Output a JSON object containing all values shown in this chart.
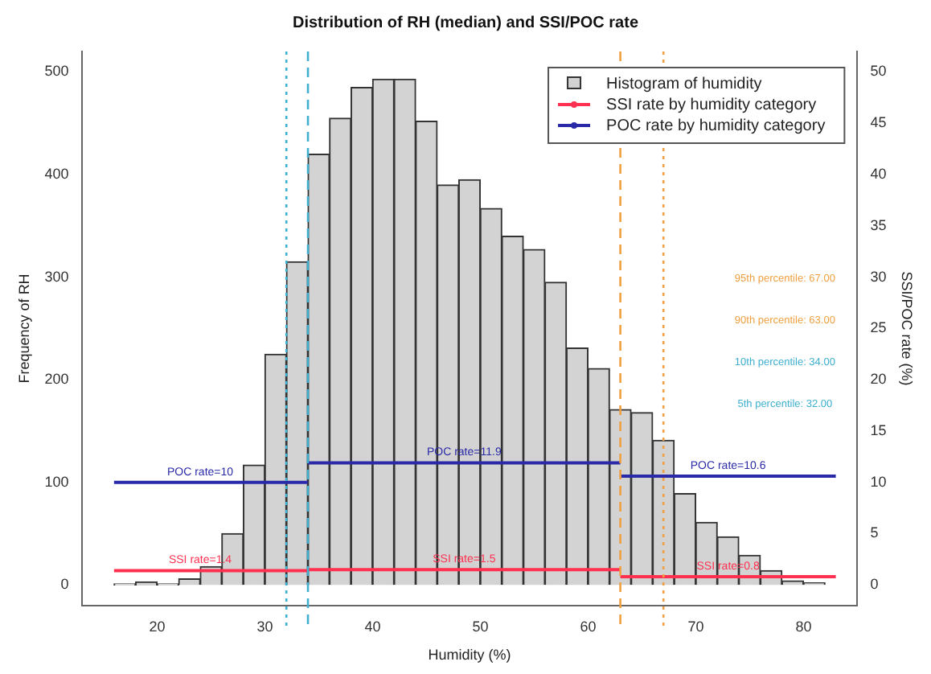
{
  "chart_data": {
    "type": "histogram",
    "title": "Distribution of RH (median) and SSI/POC rate",
    "xlabel": "Humidity (%)",
    "ylabel": "Frequency of RH",
    "y2label": "SSI/POC rate (%)",
    "bins": [
      16,
      18,
      20,
      22,
      24,
      26,
      28,
      30,
      32,
      34,
      36,
      38,
      40,
      42,
      44,
      46,
      48,
      50,
      52,
      54,
      56,
      58,
      60,
      62,
      64,
      66,
      68,
      70,
      72,
      74,
      76,
      78,
      80,
      82
    ],
    "series": [
      {
        "name": "Histogram of humidity",
        "type": "histogram",
        "color": "#d3d3d3",
        "values": [
          1,
          3,
          1,
          6,
          18,
          50,
          117,
          225,
          315,
          420,
          455,
          485,
          493,
          493,
          452,
          390,
          395,
          367,
          340,
          327,
          295,
          231,
          211,
          171,
          168,
          141,
          89,
          61,
          47,
          29,
          14,
          4,
          2
        ]
      },
      {
        "name": "SSI rate by humidity category",
        "type": "line",
        "axis": "y2",
        "color": "#ff3050",
        "x": [
          16,
          34,
          34,
          63,
          63,
          83
        ],
        "values": [
          1.4,
          1.4,
          1.5,
          1.5,
          0.8,
          0.8
        ]
      },
      {
        "name": "POC rate by humidity category",
        "type": "line",
        "axis": "y2",
        "color": "#2a2aa8",
        "x": [
          16,
          34,
          34,
          63,
          63,
          83
        ],
        "values": [
          10,
          10,
          11.9,
          11.9,
          10.6,
          10.6
        ]
      }
    ],
    "annotations": [
      {
        "text": "POC rate=10",
        "x": 24,
        "y": 100
      },
      {
        "text": "POC rate=11.9",
        "x": 48.5,
        "y": 119
      },
      {
        "text": "POC rate=10.6",
        "x": 73,
        "y": 106
      },
      {
        "text": "SSI rate=1.4",
        "x": 24,
        "y": 14
      },
      {
        "text": "SSI rate=1.5",
        "x": 48.5,
        "y": 15
      },
      {
        "text": "SSI rate=0.8",
        "x": 73,
        "y": 8
      }
    ],
    "ref_lines": [
      {
        "axis": "x",
        "value": 67,
        "label": "95th percentile: 67.00",
        "color": "#f0a040",
        "line_style": "dotted"
      },
      {
        "axis": "x",
        "value": 63,
        "label": "90th percentile: 63.00",
        "color": "#f0a040",
        "line_style": "dashed"
      },
      {
        "axis": "x",
        "value": 34,
        "label": "10th percentile: 34.00",
        "color": "#40b0d0",
        "line_style": "dashed"
      },
      {
        "axis": "x",
        "value": 32,
        "label": "5th percentile: 32.00",
        "color": "#40b0d0",
        "line_style": "dotted"
      }
    ],
    "xlim": [
      13,
      85
    ],
    "xticks": [
      20,
      30,
      40,
      50,
      60,
      70,
      80
    ],
    "ylim": [
      -20,
      520
    ],
    "yticks": [
      0,
      100,
      200,
      300,
      400,
      500
    ],
    "y2lim": [
      -2,
      52
    ],
    "y2ticks": [
      0,
      5,
      10,
      15,
      20,
      25,
      30,
      35,
      40,
      45,
      50
    ],
    "grid": false,
    "legend": "top right",
    "marker": "none",
    "line_style": "solid"
  }
}
